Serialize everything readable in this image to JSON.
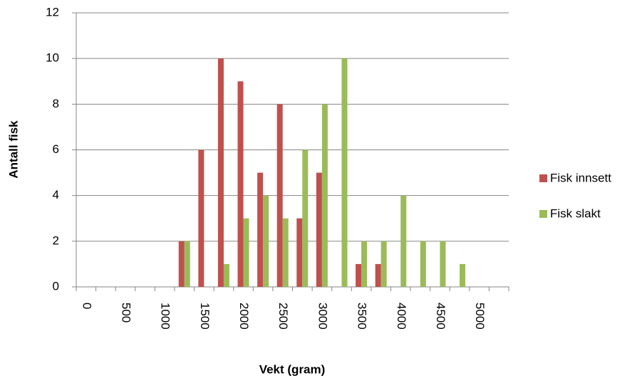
{
  "chart_data": {
    "type": "bar",
    "x_label": "Vekt (gram)",
    "y_label": "Antall fisk",
    "categories": [
      "0",
      null,
      "500",
      null,
      "1000",
      null,
      "1500",
      null,
      "2000",
      null,
      "2500",
      null,
      "3000",
      null,
      "3500",
      null,
      "4000",
      null,
      "4500",
      null,
      "5000",
      null
    ],
    "series": [
      {
        "name": "Fisk innsett",
        "color": "#c0504d",
        "values": [
          0,
          0,
          0,
          0,
          0,
          2,
          6,
          10,
          9,
          5,
          8,
          3,
          5,
          0,
          1,
          1,
          0,
          0,
          0,
          0,
          0,
          0
        ]
      },
      {
        "name": "Fisk slakt",
        "color": "#9bbb59",
        "values": [
          0,
          0,
          0,
          0,
          0,
          2,
          0,
          1,
          3,
          4,
          3,
          6,
          8,
          10,
          2,
          2,
          4,
          2,
          2,
          1,
          0,
          0
        ]
      }
    ],
    "ylim": [
      0,
      12
    ],
    "yticks": [
      0,
      2,
      4,
      6,
      8,
      10,
      12
    ],
    "grid": true,
    "legend": "right"
  }
}
